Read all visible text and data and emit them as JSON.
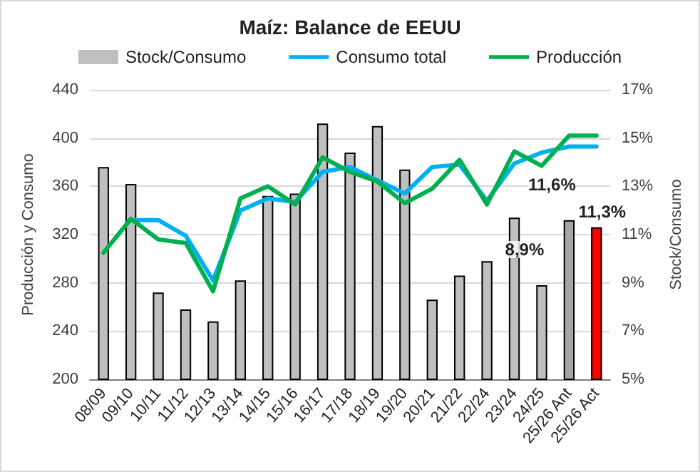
{
  "chart_data": {
    "type": "bar",
    "title": "Maíz: Balance de EEUU",
    "ylabel": "Producción y Consumo",
    "y2label": "Stock/Consumo",
    "categories": [
      "08/09",
      "09/10",
      "10/11",
      "11/12",
      "12/13",
      "13/14",
      "14/15",
      "15/16",
      "16/17",
      "17/18",
      "18/19",
      "19/20",
      "20/21",
      "21/22",
      "22/24",
      "23/24",
      "24/25",
      "25/26 Ant",
      "25/26 Act"
    ],
    "series": [
      {
        "name": "Stock/Consumo",
        "axis": "y2",
        "color": "#bfbfbf",
        "colors": [
          "#bfbfbf",
          "#bfbfbf",
          "#bfbfbf",
          "#bfbfbf",
          "#bfbfbf",
          "#bfbfbf",
          "#bfbfbf",
          "#bfbfbf",
          "#bfbfbf",
          "#bfbfbf",
          "#bfbfbf",
          "#bfbfbf",
          "#bfbfbf",
          "#bfbfbf",
          "#bfbfbf",
          "#bfbfbf",
          "#bfbfbf",
          "#a6a6a6",
          "#ff0000"
        ],
        "values": [
          13.8,
          13.1,
          8.6,
          7.9,
          7.4,
          9.1,
          12.6,
          12.7,
          15.6,
          14.4,
          15.5,
          13.7,
          8.3,
          9.3,
          9.9,
          11.7,
          8.9,
          11.6,
          11.3
        ],
        "value_labels": [
          null,
          null,
          null,
          null,
          null,
          null,
          null,
          null,
          null,
          null,
          null,
          null,
          null,
          null,
          null,
          null,
          "8,9%",
          "11,6%",
          "11,3%"
        ]
      },
      {
        "name": "Consumo total",
        "type": "line",
        "color": "#00b0f0",
        "values": [
          null,
          332,
          332,
          319,
          282,
          340,
          350,
          347,
          372,
          376,
          365,
          354,
          376,
          378,
          348,
          379,
          388,
          393,
          393
        ]
      },
      {
        "name": "Producción",
        "type": "line",
        "color": "#00b050",
        "values": [
          305,
          333,
          316,
          313,
          273,
          350,
          360,
          345,
          384,
          372,
          364,
          346,
          358,
          382,
          345,
          389,
          377,
          402,
          402
        ]
      }
    ],
    "ylim": [
      200,
      440
    ],
    "yticks": [
      200,
      240,
      280,
      320,
      360,
      400,
      440
    ],
    "y2lim": [
      5,
      17
    ],
    "y2ticks": [
      {
        "value": 5,
        "label": "5%"
      },
      {
        "value": 7,
        "label": "7%"
      },
      {
        "value": 9,
        "label": "9%"
      },
      {
        "value": 11,
        "label": "11%"
      },
      {
        "value": 13,
        "label": "13%"
      },
      {
        "value": 15,
        "label": "15%"
      },
      {
        "value": 17,
        "label": "17%"
      }
    ],
    "grid": "y",
    "legend": "top",
    "marker": "none",
    "line_style": "solid"
  }
}
